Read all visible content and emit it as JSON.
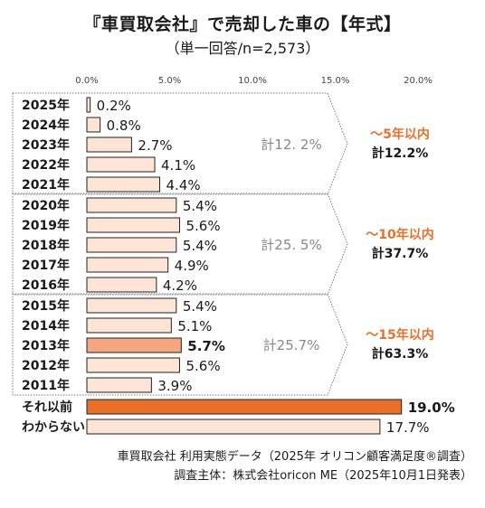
{
  "chart_data": {
    "type": "bar",
    "orientation": "horizontal",
    "title": "『車買取会社』で売却した車の【年式】",
    "subtitle": "（単一回答/n=2,573）",
    "xlim": [
      0,
      20
    ],
    "ticks": [
      "0.0%",
      "5.0%",
      "10.0%",
      "15.0%",
      "20.0%"
    ],
    "categories": [
      "2025年",
      "2024年",
      "2023年",
      "2022年",
      "2021年",
      "2020年",
      "2019年",
      "2018年",
      "2017年",
      "2016年",
      "2015年",
      "2014年",
      "2013年",
      "2012年",
      "2011年",
      "それ以前",
      "わからない"
    ],
    "values": [
      0.2,
      0.8,
      2.7,
      4.1,
      4.4,
      5.4,
      5.6,
      5.4,
      4.9,
      4.2,
      5.4,
      5.1,
      5.7,
      5.6,
      3.9,
      19.0,
      17.7
    ],
    "value_labels": [
      "0.2%",
      "0.8%",
      "2.7%",
      "4.1%",
      "4.4%",
      "5.4%",
      "5.6%",
      "5.4%",
      "4.9%",
      "4.2%",
      "5.4%",
      "5.1%",
      "5.7%",
      "5.6%",
      "3.9%",
      "19.0%",
      "17.7%"
    ],
    "highlight": [
      12,
      15
    ],
    "groups": [
      {
        "label": "計12. 2%",
        "range_label": "～5年以内",
        "cumulative_label": "計12.2%"
      },
      {
        "label": "計25. 5%",
        "range_label": "～10年以内",
        "cumulative_label": "計37.7%"
      },
      {
        "label": "計25.7%",
        "range_label": "～15年以内",
        "cumulative_label": "計63.3%"
      }
    ],
    "colors": {
      "bar": "#fce4d6",
      "bar_stroke": "#222222",
      "highlight_light": "#f4a582",
      "highlight_dark": "#e8702a",
      "range_label": "#e8702a",
      "group_total": "#888888"
    }
  },
  "footer": {
    "line1": "車買取会社 利用実態データ（2025年 オリコン顧客満足度®調査）",
    "line2": "調査主体：株式会社oricon ME（2025年10月1日発表）"
  }
}
